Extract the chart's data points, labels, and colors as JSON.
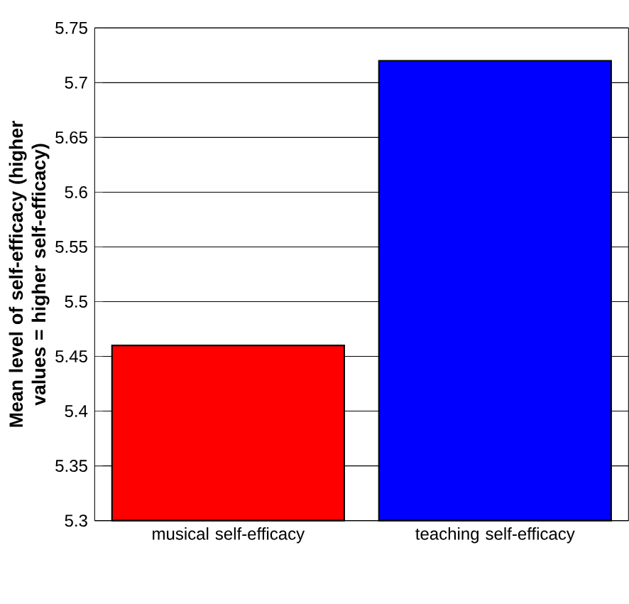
{
  "chart_data": {
    "type": "bar",
    "ylabel": "Mean level of self-efficacy (higher values = higher self-efficacy)",
    "categories": [
      "musical self-efficacy",
      "teaching self-efficacy"
    ],
    "values": [
      5.46,
      5.72
    ],
    "colors": [
      "#ff0000",
      "#0000ff"
    ],
    "ylim": [
      5.3,
      5.75
    ],
    "yticks": [
      5.3,
      5.35,
      5.4,
      5.45,
      5.5,
      5.55,
      5.6,
      5.65,
      5.7,
      5.75
    ],
    "grid": "y"
  }
}
